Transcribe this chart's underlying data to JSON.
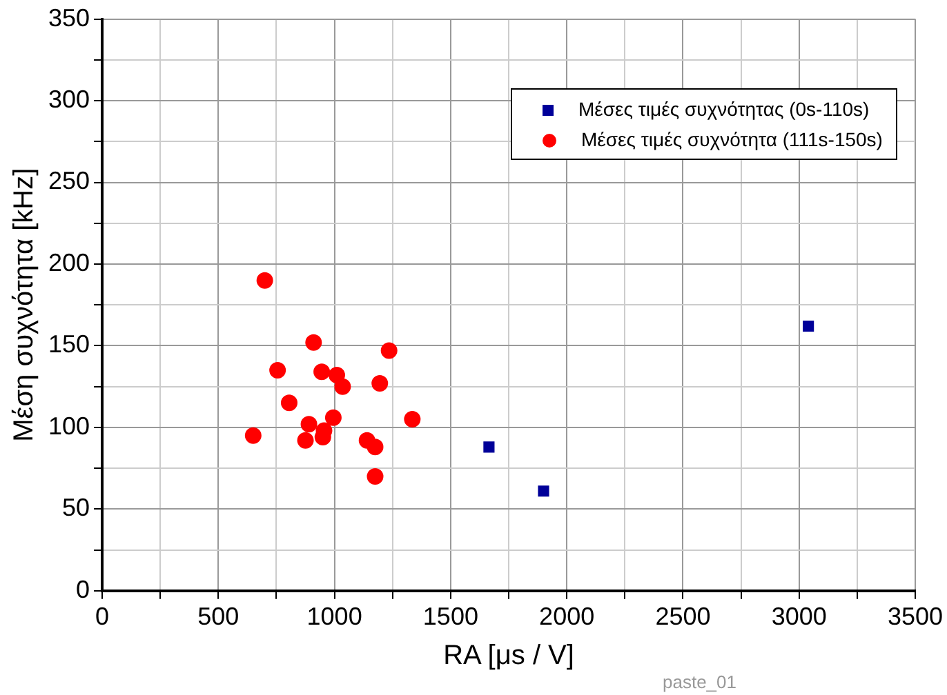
{
  "chart_data": {
    "type": "scatter",
    "xlabel": "RA [μs / V]",
    "ylabel": "Μέση συχνότητα [kHz]",
    "xlim": [
      0,
      3500
    ],
    "ylim": [
      0,
      350
    ],
    "xticks": [
      0,
      {
        "value": 250,
        "label": null
      },
      500,
      {
        "value": 750,
        "label": null
      },
      1000,
      {
        "value": 1250,
        "label": null
      },
      1500,
      {
        "value": 1750,
        "label": null
      },
      2000,
      {
        "value": 2250,
        "label": null
      },
      2500,
      {
        "value": 2750,
        "label": null
      },
      3000,
      {
        "value": 3250,
        "label": null
      },
      3500
    ],
    "yticks": [
      0,
      {
        "value": 25,
        "label": null
      },
      50,
      {
        "value": 75,
        "label": null
      },
      100,
      {
        "value": 125,
        "label": null
      },
      150,
      {
        "value": 175,
        "label": null
      },
      200,
      {
        "value": 225,
        "label": null
      },
      250,
      {
        "value": 275,
        "label": null
      },
      300,
      {
        "value": 325,
        "label": null
      },
      350
    ],
    "grid": true,
    "legend": "top right",
    "series": [
      {
        "name": "Μέσες τιμές συχνότητας (0s-110s)",
        "color": "#000099",
        "marker": "square",
        "x": [
          1665,
          1900,
          3040
        ],
        "values": [
          88,
          61,
          162
        ]
      },
      {
        "name": "Μέσες τιμές συχνότητα (111s-150s)",
        "color": "#ff0000",
        "marker": "circle",
        "x": [
          650,
          700,
          755,
          805,
          875,
          890,
          910,
          945,
          950,
          955,
          995,
          1010,
          1035,
          1140,
          1175,
          1175,
          1195,
          1235,
          1335
        ],
        "values": [
          95,
          190,
          135,
          115,
          92,
          102,
          152,
          134,
          94,
          98,
          106,
          132,
          125,
          92,
          88,
          70,
          127,
          147,
          105
        ]
      }
    ],
    "annotations": [
      "paste_01"
    ]
  }
}
